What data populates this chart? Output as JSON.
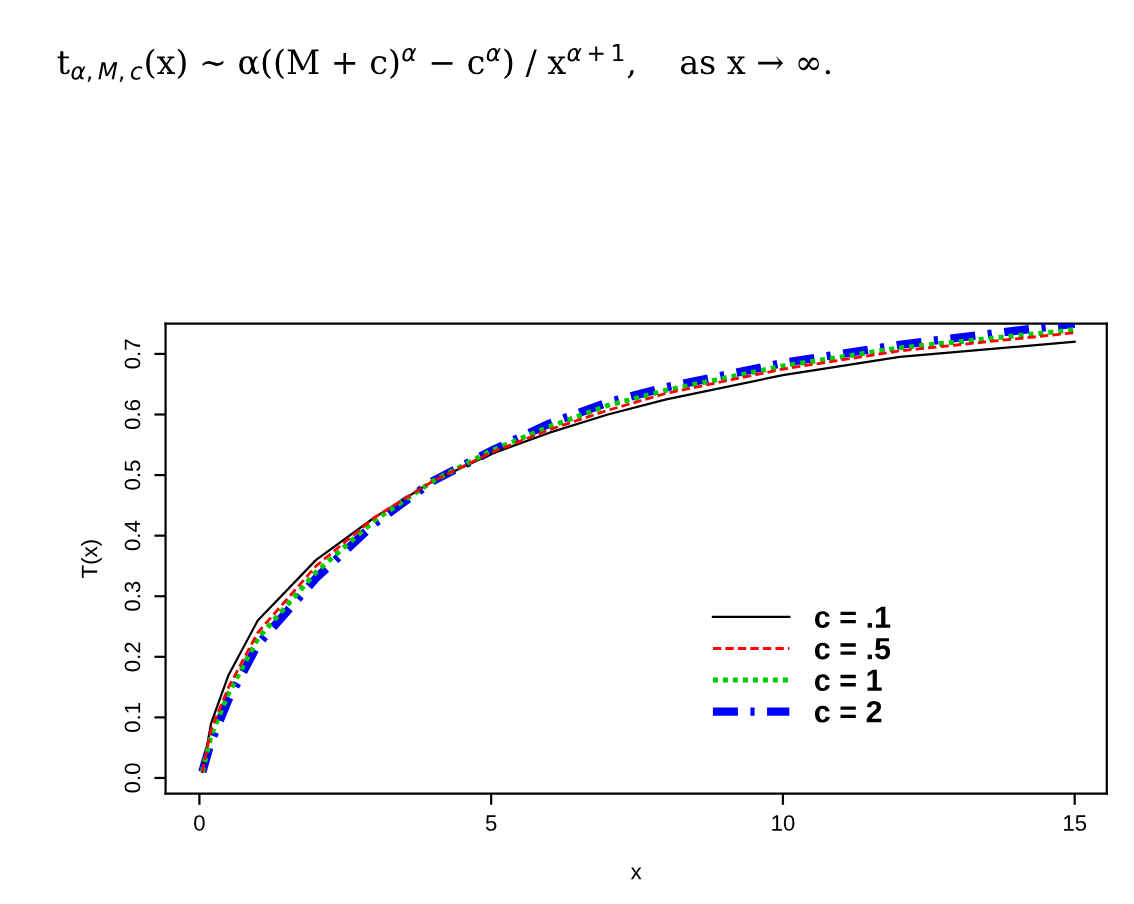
{
  "chart_data": {
    "type": "line",
    "xlabel": "x",
    "ylabel": "T(x)",
    "annotations": [
      "t$_{α,M,c}$(x) ∼ α((M + c)$^{α}$ − c$^{α}$) / x$^{α+1}$,    as x → ∞."
    ],
    "xlim": [
      -0.58,
      15.55
    ],
    "xticks": [
      0,
      5,
      10,
      15
    ],
    "ylim": [
      -0.026,
      0.75
    ],
    "yticks": [
      {
        "value": 0,
        "label": "0.0"
      },
      0.1,
      0.2,
      0.3,
      0.4,
      0.5,
      0.6,
      0.7
    ],
    "grid": false,
    "legend": "bottom right",
    "marker": "none",
    "x": [
      0.05,
      0.2,
      0.5,
      1,
      2,
      3,
      4,
      5,
      6,
      7,
      8,
      10,
      12,
      15
    ],
    "series": [
      {
        "name": "c = .1",
        "color": "#000000",
        "line_style": "solid",
        "values": [
          0.01,
          0.09,
          0.17,
          0.26,
          0.36,
          0.43,
          0.49,
          0.535,
          0.57,
          0.6,
          0.625,
          0.665,
          0.695,
          0.72
        ]
      },
      {
        "name": "c = .5",
        "color": "#ff0000",
        "line_style": "dashed",
        "values": [
          0.01,
          0.08,
          0.15,
          0.24,
          0.35,
          0.43,
          0.49,
          0.537,
          0.575,
          0.607,
          0.635,
          0.675,
          0.705,
          0.735
        ]
      },
      {
        "name": "c = 1",
        "color": "#00cc00",
        "line_style": "dotted",
        "values": [
          0.01,
          0.07,
          0.14,
          0.23,
          0.34,
          0.425,
          0.49,
          0.54,
          0.58,
          0.615,
          0.64,
          0.68,
          0.71,
          0.74
        ]
      },
      {
        "name": "c = 2",
        "color": "#0000ff",
        "line_style": "dashed",
        "values": [
          0.01,
          0.06,
          0.13,
          0.22,
          0.33,
          0.42,
          0.49,
          0.54,
          0.585,
          0.62,
          0.645,
          0.685,
          0.715,
          0.75
        ]
      }
    ]
  }
}
